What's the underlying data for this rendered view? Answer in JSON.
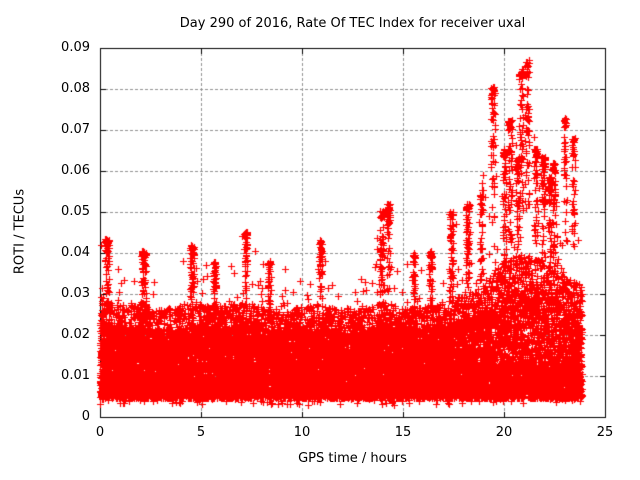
{
  "title": "Day 290 of 2016, Rate Of TEC Index for receiver uxal",
  "colors": {
    "marker": "#ff0000",
    "grid": "#909090",
    "axis": "#000000",
    "background": "#ffffff",
    "text": "#000000"
  },
  "chart_data": {
    "type": "scatter",
    "title": "Day 290 of 2016, Rate Of TEC Index for receiver uxal",
    "xlabel": "GPS time / hours",
    "ylabel": "ROTI / TECUs",
    "xlim": [
      0,
      25
    ],
    "ylim": [
      0,
      0.09
    ],
    "xtick_labels": [
      "0",
      "5",
      "10",
      "15",
      "20",
      "25"
    ],
    "xtick_values": [
      0,
      5,
      10,
      15,
      20,
      25
    ],
    "ytick_labels": [
      "0",
      "0.01",
      "0.02",
      "0.03",
      "0.04",
      "0.05",
      "0.06",
      "0.07",
      "0.08",
      "0.09"
    ],
    "ytick_values": [
      0,
      0.01,
      0.02,
      0.03,
      0.04,
      0.05,
      0.06,
      0.07,
      0.08,
      0.09
    ],
    "grid": "dashed",
    "legend": "none",
    "marker": {
      "shape": "plus",
      "size": 7,
      "color": "#ff0000"
    },
    "series": [
      {
        "name": "ROTI",
        "x_start": 0,
        "x_end": 23.85,
        "sample_step_hours": 0.008333,
        "points_per_epoch_min": 5,
        "points_per_epoch_max": 7,
        "band_floor": 0.0045,
        "band_median": 0.013,
        "low_outlier_min": 0.003,
        "hourly_dense_top": [
          0.03,
          0.027,
          0.028,
          0.026,
          0.027,
          0.028,
          0.027,
          0.028,
          0.027,
          0.026,
          0.027,
          0.027,
          0.026,
          0.026,
          0.028,
          0.027,
          0.027,
          0.028,
          0.03,
          0.033,
          0.038,
          0.04,
          0.038,
          0.034,
          0.032
        ],
        "hourly_envelope_max": [
          0.043,
          0.038,
          0.04,
          0.036,
          0.042,
          0.038,
          0.037,
          0.045,
          0.038,
          0.036,
          0.038,
          0.043,
          0.036,
          0.035,
          0.047,
          0.038,
          0.04,
          0.047,
          0.052,
          0.06,
          0.07,
          0.075,
          0.062,
          0.055,
          0.05
        ],
        "spike_events": [
          {
            "t0": 0.25,
            "t1": 0.45,
            "peak": 0.0435
          },
          {
            "t0": 2.05,
            "t1": 2.3,
            "peak": 0.0405
          },
          {
            "t0": 4.45,
            "t1": 4.65,
            "peak": 0.042
          },
          {
            "t0": 5.6,
            "t1": 5.75,
            "peak": 0.038
          },
          {
            "t0": 7.15,
            "t1": 7.3,
            "peak": 0.0452
          },
          {
            "t0": 8.3,
            "t1": 8.45,
            "peak": 0.038
          },
          {
            "t0": 10.85,
            "t1": 11.0,
            "peak": 0.0435
          },
          {
            "t0": 13.85,
            "t1": 14.05,
            "peak": 0.0505
          },
          {
            "t0": 14.2,
            "t1": 14.35,
            "peak": 0.052
          },
          {
            "t0": 15.5,
            "t1": 15.6,
            "peak": 0.04
          },
          {
            "t0": 16.3,
            "t1": 16.45,
            "peak": 0.0405
          },
          {
            "t0": 17.3,
            "t1": 17.5,
            "peak": 0.05
          },
          {
            "t0": 18.1,
            "t1": 18.3,
            "peak": 0.052
          },
          {
            "t0": 18.8,
            "t1": 18.95,
            "peak": 0.0555
          },
          {
            "t0": 19.35,
            "t1": 19.55,
            "peak": 0.0805
          },
          {
            "t0": 19.95,
            "t1": 20.1,
            "peak": 0.0655
          },
          {
            "t0": 20.2,
            "t1": 20.4,
            "peak": 0.0725
          },
          {
            "t0": 20.6,
            "t1": 20.75,
            "peak": 0.063
          },
          {
            "t0": 20.75,
            "t1": 20.95,
            "peak": 0.0855
          },
          {
            "t0": 21.05,
            "t1": 21.25,
            "peak": 0.087
          },
          {
            "t0": 21.5,
            "t1": 21.65,
            "peak": 0.0655
          },
          {
            "t0": 21.85,
            "t1": 22.05,
            "peak": 0.0635
          },
          {
            "t0": 22.2,
            "t1": 22.35,
            "peak": 0.059
          },
          {
            "t0": 22.4,
            "t1": 22.55,
            "peak": 0.062
          },
          {
            "t0": 22.95,
            "t1": 23.1,
            "peak": 0.073
          },
          {
            "t0": 23.35,
            "t1": 23.5,
            "peak": 0.068
          }
        ],
        "random_seed": 1290
      }
    ]
  }
}
